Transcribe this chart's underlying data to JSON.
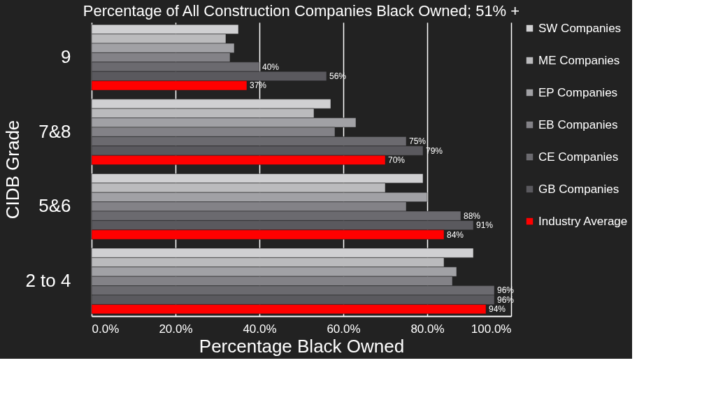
{
  "chart_data": {
    "type": "bar",
    "orientation": "horizontal",
    "title": "Percentage of All Construction Companies Black Owned; 51% +",
    "xlabel": "Percentage Black Owned",
    "ylabel": "CIDB Grade",
    "categories": [
      "9",
      "7&8",
      "5&6",
      "2 to 4"
    ],
    "series": [
      {
        "name": "SW Companies",
        "color": "#d0d0d2",
        "values": [
          35,
          57,
          79,
          91
        ]
      },
      {
        "name": "ME Companies",
        "color": "#bbbbbd",
        "values": [
          32,
          53,
          70,
          84
        ]
      },
      {
        "name": "EP Companies",
        "color": "#a1a1a5",
        "values": [
          34,
          63,
          80,
          87
        ]
      },
      {
        "name": "EB Companies",
        "color": "#838287",
        "values": [
          33,
          58,
          75,
          86
        ]
      },
      {
        "name": "CE Companies",
        "color": "#6b6a6f",
        "values": [
          40,
          75,
          88,
          96
        ],
        "value_labels": [
          "40%",
          "75%",
          "88%",
          "96%"
        ]
      },
      {
        "name": "GB Companies",
        "color": "#5a595e",
        "values": [
          56,
          79,
          91,
          96
        ],
        "value_labels": [
          "56%",
          "79%",
          "91%",
          "96%"
        ]
      },
      {
        "name": "Industry Average",
        "color": "#ff0000",
        "values": [
          37,
          70,
          84,
          94
        ],
        "value_labels": [
          "37%",
          "70%",
          "84%",
          "94%"
        ]
      }
    ],
    "xlim": [
      0,
      100
    ],
    "xticks": [
      {
        "value": 0,
        "label": "0.0%"
      },
      {
        "value": 20,
        "label": "20.0%"
      },
      {
        "value": 40,
        "label": "40.0%"
      },
      {
        "value": 60,
        "label": "60.0%"
      },
      {
        "value": 80,
        "label": "80.0%"
      },
      {
        "value": 100,
        "label": "100.0%"
      }
    ],
    "grid": "x",
    "legend": "right"
  }
}
